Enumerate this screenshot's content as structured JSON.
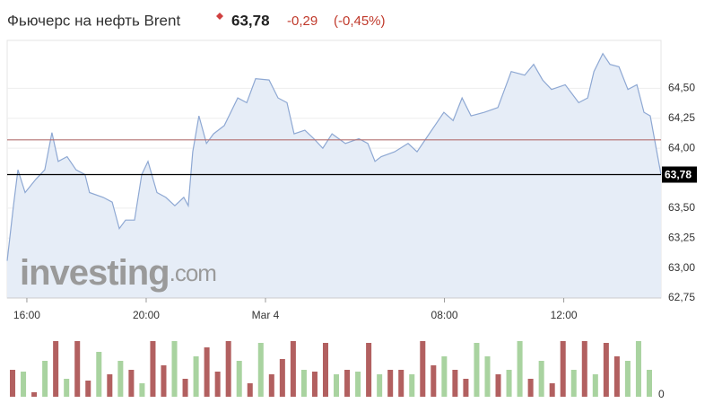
{
  "header": {
    "title": "Фьючерс на нефть Brent",
    "price": "63,78",
    "change": "-0,29",
    "change_percent": "(-0,45%)"
  },
  "chart_data": {
    "type": "area",
    "watermark": [
      "investing",
      ".com"
    ],
    "line_color": "#8ea8d3",
    "fill_color": "#e6edf7",
    "x": [
      -0.66,
      -0.45,
      -0.3,
      -0.06,
      0.3,
      0.6,
      0.84,
      1.05,
      1.35,
      1.65,
      1.95,
      2.1,
      2.56,
      2.86,
      3.1,
      3.31,
      3.61,
      3.85,
      4.06,
      4.36,
      4.66,
      4.96,
      5.26,
      5.41,
      5.56,
      5.77,
      6.02,
      6.26,
      6.62,
      7.07,
      7.37,
      7.67,
      8.12,
      8.42,
      8.72,
      8.96,
      9.32,
      9.62,
      9.92,
      10.23,
      10.68,
      11.13,
      11.43,
      11.67,
      11.88,
      12.33,
      12.78,
      13.08,
      13.38,
      13.68,
      13.98,
      14.29,
      14.59,
      14.89,
      15.34,
      15.79,
      16.24,
      16.69,
      16.99,
      17.29,
      17.59,
      18.05,
      18.5,
      18.8,
      19.01,
      19.31,
      19.55,
      19.85,
      20.15,
      20.45,
      20.69,
      20.9,
      21.26
    ],
    "values": [
      63.06,
      63.52,
      63.82,
      63.63,
      63.74,
      63.82,
      64.13,
      63.89,
      63.93,
      63.82,
      63.78,
      63.63,
      63.59,
      63.55,
      63.33,
      63.4,
      63.4,
      63.78,
      63.89,
      63.63,
      63.59,
      63.52,
      63.59,
      63.52,
      63.97,
      64.27,
      64.04,
      64.12,
      64.19,
      64.42,
      64.38,
      64.58,
      64.57,
      64.42,
      64.38,
      64.12,
      64.15,
      64.08,
      64.0,
      64.12,
      64.04,
      64.08,
      64.04,
      63.89,
      63.93,
      63.97,
      64.04,
      63.97,
      64.08,
      64.19,
      64.3,
      64.23,
      64.42,
      64.27,
      64.3,
      64.34,
      64.64,
      64.61,
      64.7,
      64.57,
      64.49,
      64.53,
      64.38,
      64.42,
      64.64,
      64.79,
      64.7,
      64.68,
      64.49,
      64.53,
      64.3,
      64.27,
      63.78
    ],
    "xlim": [
      -0.66,
      21.26
    ],
    "xticks": [
      {
        "value": 0,
        "label": "16:00"
      },
      {
        "value": 4,
        "label": "20:00"
      },
      {
        "value": 8,
        "label": "Mar 4"
      },
      {
        "value": 14,
        "label": "08:00"
      },
      {
        "value": 18,
        "label": "12:00"
      }
    ],
    "ylim": [
      62.75,
      64.9
    ],
    "yticks": [
      {
        "value": 62.75,
        "label": "62,75"
      },
      {
        "value": 63,
        "label": "63,00"
      },
      {
        "value": 63.25,
        "label": "63,25"
      },
      {
        "value": 63.5,
        "label": "63,50"
      },
      {
        "value": 64,
        "label": "64,00"
      },
      {
        "value": 64.25,
        "label": "64,25"
      },
      {
        "value": 64.5,
        "label": "64,50"
      }
    ],
    "grid": true,
    "reference_lines": [
      {
        "value": 64.07,
        "color": "#b47070"
      },
      {
        "value": 63.78,
        "label": "63,78",
        "color": "#000000"
      }
    ],
    "volume": {
      "values": [
        30,
        28,
        5,
        40,
        62,
        20,
        62,
        18,
        50,
        25,
        40,
        30,
        15,
        62,
        35,
        62,
        20,
        45,
        55,
        28,
        62,
        40,
        15,
        60,
        25,
        42,
        62,
        30,
        28,
        60,
        25,
        30,
        28,
        60,
        25,
        30,
        30,
        25,
        62,
        35,
        45,
        30,
        20,
        60,
        45,
        25,
        30,
        62,
        20,
        40,
        15,
        62,
        30,
        62,
        25,
        60,
        45,
        40,
        62,
        30
      ],
      "colors": [
        "#b26060",
        "#a9d3a0",
        "#b26060",
        "#a9d3a0",
        "#b26060",
        "#a9d3a0",
        "#b26060",
        "#b26060",
        "#a9d3a0",
        "#b26060",
        "#a9d3a0",
        "#b26060",
        "#a9d3a0",
        "#b26060",
        "#b26060",
        "#a9d3a0",
        "#b26060",
        "#a9d3a0",
        "#b26060",
        "#b26060",
        "#b26060",
        "#a9d3a0",
        "#b26060",
        "#a9d3a0",
        "#b26060",
        "#b26060",
        "#b26060",
        "#a9d3a0",
        "#b26060",
        "#b26060",
        "#a9d3a0",
        "#b26060",
        "#a9d3a0",
        "#b26060",
        "#a9d3a0",
        "#b26060",
        "#b26060",
        "#a9d3a0",
        "#b26060",
        "#b26060",
        "#a9d3a0",
        "#b26060",
        "#b26060",
        "#a9d3a0",
        "#a9d3a0",
        "#b26060",
        "#a9d3a0",
        "#a9d3a0",
        "#b26060",
        "#a9d3a0",
        "#b26060",
        "#b26060",
        "#a9d3a0",
        "#b26060",
        "#a9d3a0",
        "#b26060",
        "#b26060",
        "#a9d3a0",
        "#a9d3a0",
        "#a9d3a0"
      ],
      "ylim": [
        0,
        70
      ],
      "yticks": [
        0
      ]
    }
  }
}
